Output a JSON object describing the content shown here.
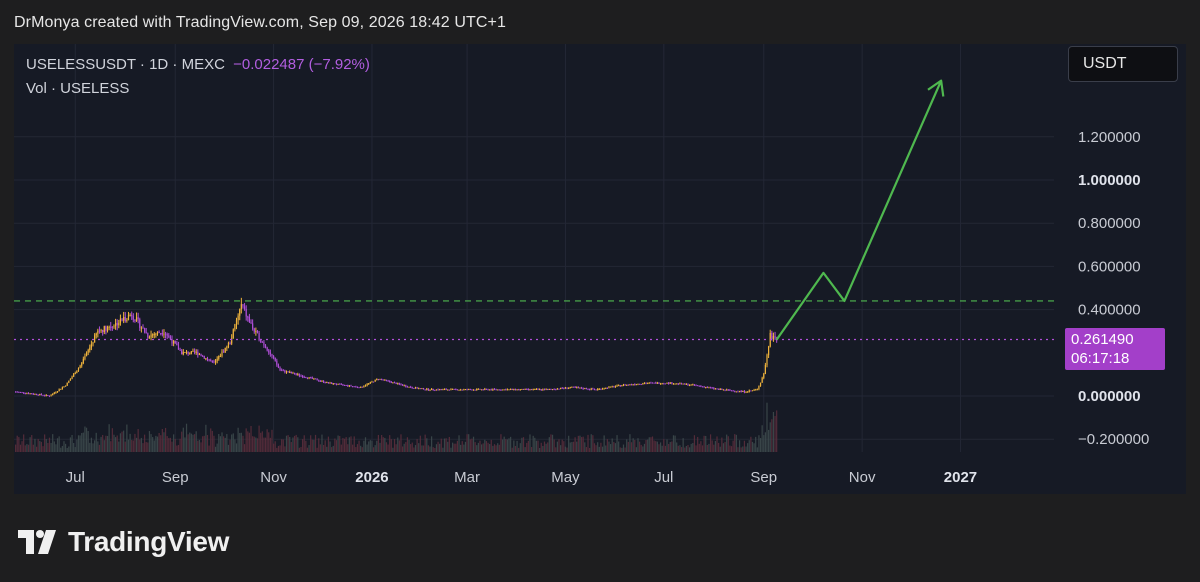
{
  "header": {
    "credit": "DrMonya created with TradingView.com, Sep 09, 2026 18:42 UTC+1"
  },
  "legend": {
    "symbol": "USELESSUSDT · 1D · MEXC",
    "change": "−0.022487 (−7.92%)",
    "volume": "Vol · USELESS"
  },
  "currency_button": "USDT",
  "last_price": {
    "price": "0.261490",
    "countdown": "06:17:18"
  },
  "brand": {
    "name": "TradingView"
  },
  "colors": {
    "background": "#161a25",
    "candle_up": "#f0b43c",
    "candle_down": "#b04fd8",
    "projection_arrow": "#4fb84f",
    "resistance_line": "#4fb84f",
    "price_line": "#b04fd8"
  },
  "chart_data": {
    "type": "line",
    "title": "",
    "xlabel": "",
    "ylabel": "",
    "ylim": [
      -0.2,
      1.2
    ],
    "y_ticks": [
      "1.200000",
      "1.000000",
      "0.800000",
      "0.600000",
      "0.400000",
      "0.000000",
      "−0.200000"
    ],
    "y_tick_values": [
      1.2,
      1.0,
      0.8,
      0.6,
      0.4,
      0.0,
      -0.2
    ],
    "x_ticks": [
      "Jul",
      "Sep",
      "Nov",
      "2026",
      "Mar",
      "May",
      "Jul",
      "Sep",
      "Nov",
      "2027"
    ],
    "x_tick_dates": [
      "2025-07-01",
      "2025-09-01",
      "2025-11-01",
      "2026-01-01",
      "2026-03-01",
      "2026-05-01",
      "2026-07-01",
      "2026-09-01",
      "2026-11-01",
      "2027-01-01"
    ],
    "x_range": [
      "2025-05-24",
      "2027-02-28"
    ],
    "series": [
      {
        "x": [
          "2025-05-25",
          "2025-06-05",
          "2025-06-15",
          "2025-06-25",
          "2025-07-05",
          "2025-07-15",
          "2025-07-25",
          "2025-08-05",
          "2025-08-15",
          "2025-08-25",
          "2025-09-05",
          "2025-09-15",
          "2025-09-25",
          "2025-10-05",
          "2025-10-12",
          "2025-10-20",
          "2025-10-28",
          "2025-11-05",
          "2025-11-15",
          "2025-11-25",
          "2025-12-05",
          "2025-12-15",
          "2025-12-25",
          "2026-01-05",
          "2026-01-15",
          "2026-01-25",
          "2026-02-05",
          "2026-02-15",
          "2026-03-01",
          "2026-03-20",
          "2026-04-05",
          "2026-04-20",
          "2026-05-05",
          "2026-05-20",
          "2026-06-05",
          "2026-06-20",
          "2026-07-05",
          "2026-07-20",
          "2026-08-05",
          "2026-08-20",
          "2026-08-28",
          "2026-09-01",
          "2026-09-05",
          "2026-09-09"
        ],
        "values": [
          0.02,
          0.01,
          0.0,
          0.05,
          0.15,
          0.3,
          0.33,
          0.38,
          0.28,
          0.3,
          0.2,
          0.2,
          0.15,
          0.25,
          0.42,
          0.3,
          0.22,
          0.12,
          0.1,
          0.08,
          0.06,
          0.05,
          0.04,
          0.08,
          0.06,
          0.04,
          0.03,
          0.03,
          0.03,
          0.03,
          0.03,
          0.03,
          0.04,
          0.03,
          0.05,
          0.06,
          0.06,
          0.05,
          0.03,
          0.02,
          0.03,
          0.1,
          0.28,
          0.26149
        ]
      }
    ],
    "candle_colors": {
      "up": "#f0b43c",
      "down": "#b04fd8"
    },
    "projection_arrow": {
      "x": [
        "2026-09-09",
        "2026-10-08",
        "2026-10-21",
        "2026-12-20"
      ],
      "values": [
        0.261,
        0.57,
        0.44,
        1.46
      ]
    },
    "horizontal_lines": [
      {
        "style": "dashed",
        "color": "#4fb84f",
        "value": 0.44
      },
      {
        "style": "dotted",
        "color": "#b04fd8",
        "value": 0.26149
      }
    ],
    "grid": true
  }
}
